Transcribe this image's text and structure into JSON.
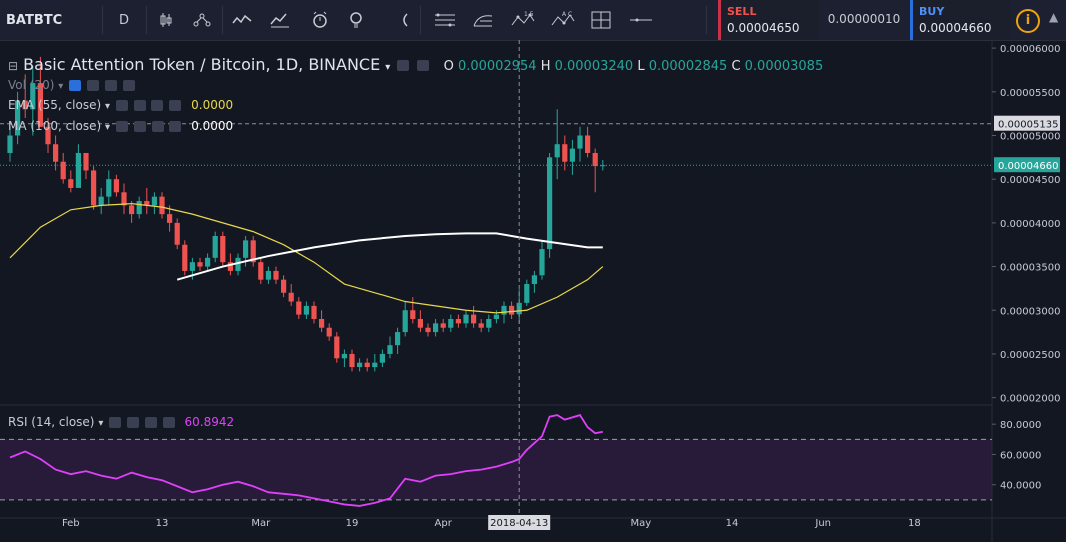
{
  "toolbar": {
    "symbol": "BATBTC",
    "interval": "D",
    "sell_label": "SELL",
    "sell_value": "0.00004650",
    "spread_value": "0.00000010",
    "buy_label": "BUY",
    "buy_value": "0.00004660",
    "icons": [
      "candles-icon",
      "compare-icon",
      "indicators-icon",
      "alert-icon",
      "idea-icon",
      "cursor-icon",
      "lines-icon",
      "fib-icon",
      "pattern-icon",
      "prediction-icon",
      "measure-icon",
      "hline-icon"
    ]
  },
  "header": {
    "title": "Basic Attention Token / Bitcoin, 1D, BINANCE",
    "o_label": "O",
    "o_value": "0.00002954",
    "h_label": "H",
    "h_value": "0.00003240",
    "l_label": "L",
    "l_value": "0.00002845",
    "c_label": "C",
    "c_value": "0.00003085"
  },
  "indicators": {
    "vol_label": "Vol (20)",
    "ema_label": "EMA (55, close)",
    "ema_value": "0.0000",
    "ma_label": "MA (100, close)",
    "ma_value": "0.0000",
    "rsi_label": "RSI (14, close)",
    "rsi_value": "60.8942"
  },
  "colors": {
    "up": "#26a69a",
    "down": "#ef5350",
    "ema": "#e8d84a",
    "ma": "#ffffff",
    "rsi": "#e040fb",
    "last_price": "#26a69a"
  },
  "chart_data": {
    "type": "candlestick",
    "title": "Basic Attention Token / Bitcoin, 1D, BINANCE",
    "ylim": [
      1.95e-05,
      6.07e-05
    ],
    "y_ticks": [
      "0.00006000",
      "0.00005500",
      "0.00005000",
      "0.00004500",
      "0.00004000",
      "0.00003500",
      "0.00003000",
      "0.00002500",
      "0.00002000"
    ],
    "y_tick_values": [
      6e-05,
      5.5e-05,
      5e-05,
      4.5e-05,
      4e-05,
      3.5e-05,
      3e-05,
      2.5e-05,
      2e-05
    ],
    "crosshair_price_label": "0.00005135",
    "crosshair_price": 5.135e-05,
    "last_price_label": "0.00004660",
    "last_price": 4.66e-05,
    "x_ticks": [
      "Feb",
      "13",
      "Mar",
      "19",
      "Apr",
      "2018-04-13",
      "May",
      "14",
      "Jun",
      "18"
    ],
    "x_tick_days": [
      8,
      20,
      33,
      45,
      57,
      67,
      83,
      95,
      107,
      119
    ],
    "crosshair_day": 67,
    "candles": [
      [
        0,
        4.8,
        5.1,
        4.7,
        5.0
      ],
      [
        1,
        5.0,
        5.5,
        4.9,
        5.4
      ],
      [
        2,
        5.4,
        5.7,
        5.2,
        5.3
      ],
      [
        3,
        5.3,
        5.8,
        5.0,
        5.6
      ],
      [
        4,
        5.6,
        5.9,
        5.1,
        5.1
      ],
      [
        5,
        5.1,
        5.2,
        4.8,
        4.9
      ],
      [
        6,
        4.9,
        5.0,
        4.6,
        4.7
      ],
      [
        7,
        4.7,
        4.8,
        4.45,
        4.5
      ],
      [
        8,
        4.5,
        4.6,
        4.35,
        4.4
      ],
      [
        9,
        4.4,
        4.9,
        4.4,
        4.8
      ],
      [
        10,
        4.8,
        4.8,
        4.5,
        4.6
      ],
      [
        11,
        4.6,
        4.65,
        4.15,
        4.2
      ],
      [
        12,
        4.2,
        4.4,
        4.1,
        4.3
      ],
      [
        13,
        4.3,
        4.6,
        4.2,
        4.5
      ],
      [
        14,
        4.5,
        4.55,
        4.3,
        4.35
      ],
      [
        15,
        4.35,
        4.45,
        4.1,
        4.2
      ],
      [
        16,
        4.2,
        4.25,
        4.0,
        4.1
      ],
      [
        17,
        4.1,
        4.3,
        4.05,
        4.25
      ],
      [
        18,
        4.25,
        4.4,
        4.1,
        4.2
      ],
      [
        19,
        4.2,
        4.35,
        4.1,
        4.3
      ],
      [
        20,
        4.3,
        4.35,
        4.05,
        4.1
      ],
      [
        21,
        4.1,
        4.2,
        3.9,
        4.0
      ],
      [
        22,
        4.0,
        4.05,
        3.7,
        3.75
      ],
      [
        23,
        3.75,
        3.8,
        3.4,
        3.45
      ],
      [
        24,
        3.45,
        3.6,
        3.35,
        3.55
      ],
      [
        25,
        3.55,
        3.6,
        3.45,
        3.5
      ],
      [
        26,
        3.5,
        3.65,
        3.45,
        3.6
      ],
      [
        27,
        3.6,
        3.9,
        3.55,
        3.85
      ],
      [
        28,
        3.85,
        3.9,
        3.5,
        3.55
      ],
      [
        29,
        3.55,
        3.65,
        3.4,
        3.45
      ],
      [
        30,
        3.45,
        3.65,
        3.4,
        3.6
      ],
      [
        31,
        3.6,
        3.85,
        3.5,
        3.8
      ],
      [
        32,
        3.8,
        3.85,
        3.5,
        3.55
      ],
      [
        33,
        3.55,
        3.6,
        3.3,
        3.35
      ],
      [
        34,
        3.35,
        3.5,
        3.3,
        3.45
      ],
      [
        35,
        3.45,
        3.5,
        3.3,
        3.35
      ],
      [
        36,
        3.35,
        3.4,
        3.15,
        3.2
      ],
      [
        37,
        3.2,
        3.3,
        3.05,
        3.1
      ],
      [
        38,
        3.1,
        3.15,
        2.9,
        2.95
      ],
      [
        39,
        2.95,
        3.1,
        2.9,
        3.05
      ],
      [
        40,
        3.05,
        3.1,
        2.85,
        2.9
      ],
      [
        41,
        2.9,
        3.0,
        2.75,
        2.8
      ],
      [
        42,
        2.8,
        2.85,
        2.65,
        2.7
      ],
      [
        43,
        2.7,
        2.75,
        2.4,
        2.45
      ],
      [
        44,
        2.45,
        2.55,
        2.35,
        2.5
      ],
      [
        45,
        2.5,
        2.55,
        2.3,
        2.35
      ],
      [
        46,
        2.35,
        2.45,
        2.3,
        2.4
      ],
      [
        47,
        2.4,
        2.45,
        2.3,
        2.35
      ],
      [
        48,
        2.35,
        2.5,
        2.3,
        2.4
      ],
      [
        49,
        2.4,
        2.55,
        2.35,
        2.5
      ],
      [
        50,
        2.5,
        2.7,
        2.45,
        2.6
      ],
      [
        51,
        2.6,
        2.8,
        2.5,
        2.75
      ],
      [
        52,
        2.75,
        3.1,
        2.7,
        3.0
      ],
      [
        53,
        3.0,
        3.15,
        2.85,
        2.9
      ],
      [
        54,
        2.9,
        3.0,
        2.75,
        2.8
      ],
      [
        55,
        2.8,
        2.85,
        2.7,
        2.75
      ],
      [
        56,
        2.75,
        2.9,
        2.7,
        2.85
      ],
      [
        57,
        2.85,
        2.9,
        2.75,
        2.8
      ],
      [
        58,
        2.8,
        2.95,
        2.75,
        2.9
      ],
      [
        59,
        2.9,
        2.95,
        2.8,
        2.85
      ],
      [
        60,
        2.85,
        3.0,
        2.8,
        2.95
      ],
      [
        61,
        2.95,
        3.05,
        2.8,
        2.85
      ],
      [
        62,
        2.85,
        2.9,
        2.75,
        2.8
      ],
      [
        63,
        2.8,
        2.95,
        2.75,
        2.9
      ],
      [
        64,
        2.9,
        3.0,
        2.85,
        2.95
      ],
      [
        65,
        2.95,
        3.1,
        2.85,
        3.05
      ],
      [
        66,
        3.05,
        3.1,
        2.9,
        2.95
      ],
      [
        67,
        2.954,
        3.24,
        2.845,
        3.085
      ],
      [
        68,
        3.085,
        3.35,
        3.05,
        3.3
      ],
      [
        69,
        3.3,
        3.45,
        3.2,
        3.4
      ],
      [
        70,
        3.4,
        3.8,
        3.35,
        3.7
      ],
      [
        71,
        3.7,
        4.8,
        3.6,
        4.75
      ],
      [
        72,
        4.75,
        5.3,
        4.5,
        4.9
      ],
      [
        73,
        4.9,
        5.0,
        4.6,
        4.7
      ],
      [
        74,
        4.7,
        4.95,
        4.55,
        4.85
      ],
      [
        75,
        4.85,
        5.1,
        4.7,
        5.0
      ],
      [
        76,
        5.0,
        5.1,
        4.75,
        4.8
      ],
      [
        77,
        4.8,
        4.85,
        4.35,
        4.65
      ],
      [
        78,
        4.65,
        4.72,
        4.6,
        4.66
      ]
    ],
    "ema_series": [
      [
        0,
        3.6
      ],
      [
        4,
        3.95
      ],
      [
        8,
        4.15
      ],
      [
        12,
        4.2
      ],
      [
        16,
        4.22
      ],
      [
        20,
        4.18
      ],
      [
        24,
        4.1
      ],
      [
        28,
        4.0
      ],
      [
        32,
        3.9
      ],
      [
        36,
        3.75
      ],
      [
        40,
        3.55
      ],
      [
        44,
        3.3
      ],
      [
        48,
        3.2
      ],
      [
        52,
        3.1
      ],
      [
        56,
        3.05
      ],
      [
        60,
        3.0
      ],
      [
        64,
        2.97
      ],
      [
        68,
        3.0
      ],
      [
        72,
        3.15
      ],
      [
        76,
        3.35
      ],
      [
        78,
        3.5
      ]
    ],
    "ma_series": [
      [
        22,
        3.35
      ],
      [
        28,
        3.5
      ],
      [
        34,
        3.62
      ],
      [
        40,
        3.72
      ],
      [
        46,
        3.8
      ],
      [
        52,
        3.85
      ],
      [
        56,
        3.87
      ],
      [
        60,
        3.88
      ],
      [
        64,
        3.88
      ],
      [
        68,
        3.82
      ],
      [
        72,
        3.77
      ],
      [
        76,
        3.72
      ],
      [
        78,
        3.72
      ]
    ],
    "rsi": {
      "ylim": [
        22,
        92
      ],
      "y_ticks": [
        "80.0000",
        "60.0000",
        "40.0000"
      ],
      "y_tick_values": [
        80,
        60,
        40
      ],
      "band_upper": 70,
      "band_lower": 30,
      "values": [
        [
          0,
          58
        ],
        [
          2,
          62
        ],
        [
          4,
          57
        ],
        [
          6,
          50
        ],
        [
          8,
          47
        ],
        [
          10,
          49
        ],
        [
          12,
          46
        ],
        [
          14,
          44
        ],
        [
          16,
          48
        ],
        [
          18,
          45
        ],
        [
          20,
          43
        ],
        [
          22,
          39
        ],
        [
          24,
          35
        ],
        [
          26,
          37
        ],
        [
          28,
          40
        ],
        [
          30,
          42
        ],
        [
          32,
          39
        ],
        [
          34,
          35
        ],
        [
          36,
          34
        ],
        [
          38,
          33
        ],
        [
          40,
          31
        ],
        [
          42,
          29
        ],
        [
          44,
          27
        ],
        [
          46,
          26
        ],
        [
          48,
          28
        ],
        [
          50,
          31
        ],
        [
          52,
          44
        ],
        [
          54,
          42
        ],
        [
          56,
          46
        ],
        [
          58,
          47
        ],
        [
          60,
          49
        ],
        [
          62,
          50
        ],
        [
          64,
          52
        ],
        [
          66,
          55
        ],
        [
          67,
          57
        ],
        [
          68,
          63
        ],
        [
          70,
          72
        ],
        [
          71,
          85
        ],
        [
          72,
          86
        ],
        [
          73,
          83
        ],
        [
          75,
          86
        ],
        [
          76,
          78
        ],
        [
          77,
          74
        ],
        [
          78,
          75
        ]
      ]
    }
  }
}
